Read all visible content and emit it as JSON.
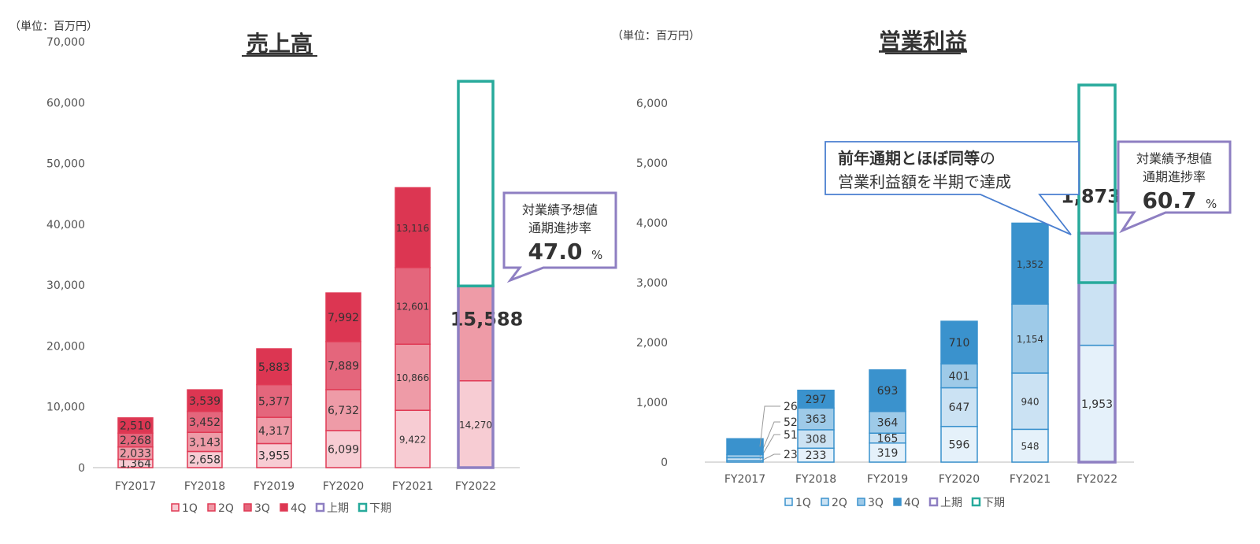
{
  "chart_data": [
    {
      "type": "bar",
      "stacked": true,
      "title": "売上高",
      "unit_label": "（単位：百万円）",
      "categories": [
        "FY2017",
        "FY2018",
        "FY2019",
        "FY2020",
        "FY2021",
        "FY2022"
      ],
      "ylim": [
        0,
        70000
      ],
      "yticks": [
        0,
        10000,
        20000,
        30000,
        40000,
        50000,
        60000,
        70000
      ],
      "ytick_labels": [
        "0",
        "10,000",
        "20,000",
        "30,000",
        "40,000",
        "50,000",
        "60,000",
        "70,000"
      ],
      "grid": false,
      "legend_position": "bottom",
      "series": [
        {
          "name": "1Q",
          "color": "#f7ccd3",
          "values": [
            1364,
            2658,
            3955,
            6099,
            9422,
            14270
          ],
          "labels": [
            "1,364",
            "2,658",
            "3,955",
            "6,099",
            "9,422",
            "14,270"
          ]
        },
        {
          "name": "2Q",
          "color": "#ee9ba7",
          "values": [
            2033,
            3143,
            4317,
            6732,
            10866,
            15588
          ],
          "labels": [
            "2,033",
            "3,143",
            "4,317",
            "6,732",
            "10,866",
            "15,588"
          ]
        },
        {
          "name": "3Q",
          "color": "#e4667c",
          "values": [
            2268,
            3452,
            5377,
            7889,
            12601,
            null
          ],
          "labels": [
            "2,268",
            "3,452",
            "5,377",
            "7,889",
            "12,601",
            ""
          ]
        },
        {
          "name": "4Q",
          "color": "#dc3652",
          "values": [
            2510,
            3539,
            5883,
            7992,
            13116,
            null
          ],
          "labels": [
            "2,510",
            "3,539",
            "5,883",
            "7,992",
            "13,116",
            ""
          ]
        }
      ],
      "edge_color": "#e03a55",
      "half_legend": [
        {
          "name": "上期",
          "color": "#8e7fc2"
        },
        {
          "name": "下期",
          "color": "#27aa9b"
        }
      ],
      "first_half_box": [
        0,
        29858
      ],
      "second_half_box": [
        29858,
        63500
      ],
      "callout": {
        "line1": "対業績予想値",
        "line2": "通期進捗率",
        "value": "47.0",
        "unit": "%"
      }
    },
    {
      "type": "bar",
      "stacked": true,
      "title": "営業利益",
      "unit_label": "（単位：百万円）",
      "categories": [
        "FY2017",
        "FY2018",
        "FY2019",
        "FY2020",
        "FY2021",
        "FY2022"
      ],
      "ylim": [
        0,
        6000
      ],
      "yticks": [
        0,
        1000,
        2000,
        3000,
        4000,
        5000,
        6000
      ],
      "ytick_labels": [
        "0",
        "1,000",
        "2,000",
        "3,000",
        "4,000",
        "5,000",
        "6,000"
      ],
      "grid": false,
      "legend_position": "bottom",
      "series": [
        {
          "name": "1Q",
          "color": "#e5f1fa",
          "values": [
            23,
            233,
            319,
            596,
            548,
            1953
          ],
          "labels": [
            "23",
            "233",
            "319",
            "596",
            "548",
            "1,953"
          ]
        },
        {
          "name": "2Q",
          "color": "#cbe2f3",
          "values": [
            51,
            308,
            165,
            647,
            940,
            1873
          ],
          "labels": [
            "51",
            "308",
            "165",
            "647",
            "940",
            "1,873"
          ]
        },
        {
          "name": "3Q",
          "color": "#9ecae8",
          "values": [
            52,
            363,
            364,
            401,
            1154,
            null
          ],
          "labels": [
            "52",
            "363",
            "364",
            "401",
            "1,154",
            ""
          ]
        },
        {
          "name": "4Q",
          "color": "#3a92cd",
          "values": [
            265,
            297,
            693,
            710,
            1352,
            null
          ],
          "labels": [
            "265",
            "297",
            "693",
            "710",
            "1,352",
            ""
          ]
        }
      ],
      "edge_color": "#3a92cd",
      "half_legend": [
        {
          "name": "上期",
          "color": "#8e7fc2"
        },
        {
          "name": "下期",
          "color": "#27aa9b"
        }
      ],
      "first_half_box": [
        0,
        3826
      ],
      "second_half_box": [
        3000,
        6303
      ],
      "callout": {
        "line1": "対業績予想値",
        "line2": "通期進捗率",
        "value": "60.7",
        "unit": "%"
      },
      "note_callout": {
        "bold": "前年通期とほぼ同等",
        "rest1": "の",
        "line2": "営業利益額を半期で達成"
      }
    }
  ]
}
